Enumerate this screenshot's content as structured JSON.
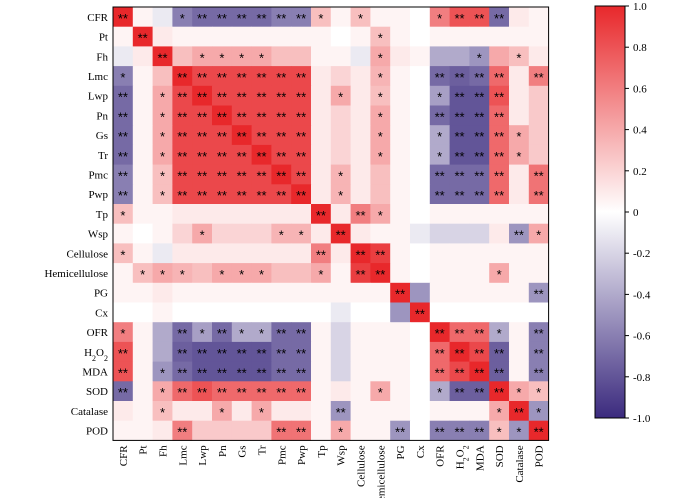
{
  "chart_data": {
    "type": "heatmap",
    "title": "",
    "xlabel": "",
    "ylabel": "",
    "variables": [
      "CFR",
      "Pt",
      "Fh",
      "Lmc",
      "Lwp",
      "Pn",
      "Gs",
      "Tr",
      "Pmc",
      "Pwp",
      "Tp",
      "Wsp",
      "Cellulose",
      "Hemicellulose",
      "PG",
      "Cx",
      "OFR",
      "H2O2",
      "MDA",
      "SOD",
      "Catalase",
      "POD"
    ],
    "row_labels": [
      {
        "main": "CFR"
      },
      {
        "main": "Pt"
      },
      {
        "main": "Fh"
      },
      {
        "main": "Lmc"
      },
      {
        "main": "Lwp"
      },
      {
        "main": "Pn"
      },
      {
        "main": "Gs"
      },
      {
        "main": "Tr"
      },
      {
        "main": "Pmc"
      },
      {
        "main": "Pwp"
      },
      {
        "main": "Tp"
      },
      {
        "main": "Wsp"
      },
      {
        "main": "Cellulose"
      },
      {
        "main": "Hemicellulose"
      },
      {
        "main": "PG"
      },
      {
        "main": "Cx"
      },
      {
        "main": "OFR"
      },
      {
        "main": "H",
        "sub": "2",
        "main2": "O",
        "sub2": "2"
      },
      {
        "main": "MDA"
      },
      {
        "main": "SOD"
      },
      {
        "main": "Catalase"
      },
      {
        "main": "POD"
      }
    ],
    "color_scale": {
      "min": -1.0,
      "max": 1.0,
      "low_color": "#3b2a7e",
      "mid_color": "#ffffff",
      "high_color": "#e8282b"
    },
    "colorbar_ticks": [
      "1.0",
      "0.8",
      "0.6",
      "0.4",
      "0.2",
      "0",
      "-0.2",
      "-0.4",
      "-0.6",
      "-0.8",
      "-1.0"
    ],
    "colorbar_tick_values": [
      1.0,
      0.8,
      0.6,
      0.4,
      0.2,
      0,
      -0.2,
      -0.4,
      -0.6,
      -0.8,
      -1.0
    ],
    "values": [
      [
        1.0,
        0.05,
        -0.1,
        -0.6,
        -0.7,
        -0.7,
        -0.7,
        -0.7,
        -0.6,
        -0.6,
        0.3,
        0.05,
        0.3,
        0.05,
        0.05,
        0.0,
        0.6,
        0.8,
        0.8,
        -0.7,
        0.1,
        0.05
      ],
      [
        0.05,
        1.0,
        0.1,
        0.05,
        0.05,
        0.05,
        0.05,
        0.05,
        0.05,
        0.05,
        0.05,
        0.0,
        0.05,
        0.3,
        0.05,
        0.0,
        0.05,
        0.05,
        0.05,
        0.05,
        0.05,
        0.05
      ],
      [
        -0.1,
        0.1,
        1.0,
        0.3,
        0.4,
        0.4,
        0.4,
        0.4,
        0.3,
        0.3,
        0.05,
        0.05,
        -0.1,
        0.4,
        0.1,
        0.05,
        -0.4,
        -0.4,
        -0.5,
        0.4,
        0.3,
        0.1
      ],
      [
        -0.6,
        0.05,
        0.3,
        1.0,
        0.85,
        0.85,
        0.85,
        0.85,
        0.85,
        0.85,
        0.1,
        0.2,
        0.1,
        0.35,
        0.05,
        0.0,
        -0.7,
        -0.75,
        -0.7,
        0.7,
        0.1,
        0.6
      ],
      [
        -0.7,
        0.05,
        0.4,
        0.85,
        1.0,
        0.85,
        0.85,
        0.85,
        0.85,
        0.85,
        0.1,
        0.4,
        0.1,
        0.3,
        0.05,
        0.0,
        -0.45,
        -0.8,
        -0.8,
        0.8,
        0.1,
        0.25
      ],
      [
        -0.7,
        0.05,
        0.4,
        0.85,
        0.85,
        1.0,
        0.85,
        0.85,
        0.85,
        0.85,
        0.1,
        0.2,
        0.1,
        0.4,
        0.05,
        0.0,
        -0.7,
        -0.8,
        -0.8,
        0.7,
        0.1,
        0.25
      ],
      [
        -0.7,
        0.05,
        0.4,
        0.85,
        0.85,
        0.85,
        1.0,
        0.85,
        0.85,
        0.85,
        0.1,
        0.2,
        0.1,
        0.4,
        0.05,
        0.0,
        -0.4,
        -0.8,
        -0.8,
        0.7,
        0.4,
        0.25
      ],
      [
        -0.7,
        0.05,
        0.4,
        0.85,
        0.85,
        0.85,
        0.85,
        1.0,
        0.85,
        0.85,
        0.1,
        0.2,
        0.1,
        0.4,
        0.05,
        0.0,
        -0.4,
        -0.8,
        -0.8,
        0.7,
        0.4,
        0.25
      ],
      [
        -0.6,
        0.05,
        0.3,
        0.85,
        0.85,
        0.85,
        0.85,
        0.85,
        1.0,
        0.85,
        0.1,
        0.35,
        0.1,
        0.3,
        0.05,
        0.0,
        -0.7,
        -0.7,
        -0.7,
        0.7,
        0.1,
        0.65
      ],
      [
        -0.6,
        0.05,
        0.3,
        0.85,
        0.85,
        0.85,
        0.85,
        0.85,
        0.85,
        1.0,
        0.1,
        0.35,
        0.1,
        0.3,
        0.05,
        0.0,
        -0.7,
        -0.7,
        -0.7,
        0.7,
        0.1,
        0.65
      ],
      [
        0.3,
        0.05,
        0.05,
        0.1,
        0.1,
        0.1,
        0.1,
        0.1,
        0.1,
        0.1,
        1.0,
        0.1,
        0.6,
        0.4,
        0.05,
        0.0,
        0.05,
        0.05,
        0.05,
        0.05,
        0.05,
        0.05
      ],
      [
        0.05,
        0.0,
        0.05,
        0.2,
        0.4,
        0.2,
        0.2,
        0.2,
        0.35,
        0.35,
        0.1,
        1.0,
        0.1,
        0.05,
        0.05,
        -0.1,
        -0.2,
        -0.2,
        -0.2,
        0.1,
        -0.5,
        0.4
      ],
      [
        0.3,
        0.05,
        -0.1,
        0.1,
        0.1,
        0.1,
        0.1,
        0.1,
        0.1,
        0.1,
        0.6,
        0.1,
        1.0,
        0.9,
        0.05,
        0.0,
        0.05,
        0.05,
        0.05,
        0.05,
        0.05,
        0.05
      ],
      [
        0.05,
        0.3,
        0.4,
        0.35,
        0.3,
        0.4,
        0.4,
        0.4,
        0.3,
        0.3,
        0.4,
        0.05,
        0.9,
        1.0,
        0.05,
        0.0,
        0.05,
        0.05,
        0.05,
        0.4,
        0.05,
        0.05
      ],
      [
        0.05,
        0.05,
        0.1,
        0.05,
        0.05,
        0.05,
        0.05,
        0.05,
        0.05,
        0.05,
        0.05,
        0.05,
        0.05,
        0.05,
        1.0,
        -0.5,
        0.05,
        0.05,
        0.05,
        0.05,
        0.05,
        -0.5
      ],
      [
        0.0,
        0.0,
        0.05,
        0.0,
        0.0,
        0.0,
        0.0,
        0.0,
        0.0,
        0.0,
        0.0,
        -0.1,
        0.0,
        0.0,
        -0.5,
        1.0,
        0.0,
        0.0,
        0.0,
        0.0,
        0.0,
        0.0
      ],
      [
        0.6,
        0.05,
        -0.4,
        -0.7,
        -0.45,
        -0.7,
        -0.4,
        -0.4,
        -0.7,
        -0.7,
        0.05,
        -0.2,
        0.05,
        0.05,
        0.05,
        0.0,
        1.0,
        0.7,
        0.7,
        -0.4,
        0.05,
        -0.6
      ],
      [
        0.8,
        0.05,
        -0.4,
        -0.75,
        -0.8,
        -0.8,
        -0.8,
        -0.8,
        -0.7,
        -0.7,
        0.05,
        -0.2,
        0.05,
        0.05,
        0.05,
        0.0,
        0.7,
        1.0,
        0.85,
        -0.75,
        0.05,
        -0.6
      ],
      [
        0.8,
        0.05,
        -0.5,
        -0.7,
        -0.8,
        -0.8,
        -0.8,
        -0.8,
        -0.7,
        -0.7,
        0.05,
        -0.2,
        0.05,
        0.05,
        0.05,
        0.0,
        0.7,
        0.85,
        1.0,
        -0.75,
        0.05,
        -0.6
      ],
      [
        -0.7,
        0.05,
        0.4,
        0.7,
        0.8,
        0.7,
        0.7,
        0.7,
        0.7,
        0.7,
        0.05,
        0.1,
        0.05,
        0.4,
        0.05,
        0.0,
        -0.4,
        -0.75,
        -0.75,
        1.0,
        0.4,
        0.3
      ],
      [
        0.1,
        0.05,
        0.3,
        0.1,
        0.1,
        0.4,
        0.1,
        0.4,
        0.1,
        0.1,
        0.05,
        -0.5,
        0.05,
        0.05,
        0.05,
        0.0,
        0.05,
        0.05,
        0.05,
        0.4,
        1.0,
        -0.5
      ],
      [
        0.05,
        0.05,
        0.1,
        0.6,
        0.25,
        0.25,
        0.25,
        0.25,
        0.65,
        0.65,
        0.05,
        0.4,
        0.05,
        0.05,
        -0.5,
        0.0,
        -0.6,
        -0.6,
        -0.6,
        0.3,
        -0.5,
        1.0
      ]
    ],
    "significance": [
      [
        "**",
        "",
        "",
        "*",
        "**",
        "**",
        "**",
        "**",
        "**",
        "**",
        "*",
        "",
        "*",
        "",
        "",
        "",
        "*",
        "**",
        "**",
        "**",
        "",
        ""
      ],
      [
        "",
        "**",
        "",
        "",
        "",
        "",
        "",
        "",
        "",
        "",
        "",
        "",
        "",
        "*",
        "",
        "",
        "",
        "",
        "",
        "",
        "",
        ""
      ],
      [
        "",
        "",
        "**",
        "",
        "*",
        "*",
        "*",
        "*",
        "",
        "",
        "",
        "",
        "",
        "*",
        "",
        "",
        "",
        "",
        "*",
        "",
        "*",
        ""
      ],
      [
        "*",
        "",
        "",
        "**",
        "**",
        "**",
        "**",
        "**",
        "**",
        "**",
        "",
        "",
        "",
        "*",
        "",
        "",
        "**",
        "**",
        "**",
        "**",
        "",
        "**"
      ],
      [
        "**",
        "",
        "*",
        "**",
        "**",
        "**",
        "**",
        "**",
        "**",
        "**",
        "",
        "*",
        "",
        "*",
        "",
        "",
        "*",
        "**",
        "**",
        "**",
        "",
        ""
      ],
      [
        "**",
        "",
        "*",
        "**",
        "**",
        "**",
        "**",
        "**",
        "**",
        "**",
        "",
        "",
        "",
        "*",
        "",
        "",
        "**",
        "**",
        "**",
        "**",
        "",
        ""
      ],
      [
        "**",
        "",
        "*",
        "**",
        "**",
        "**",
        "**",
        "**",
        "**",
        "**",
        "",
        "",
        "",
        "*",
        "",
        "",
        "*",
        "**",
        "**",
        "**",
        "*",
        ""
      ],
      [
        "**",
        "",
        "*",
        "**",
        "**",
        "**",
        "**",
        "**",
        "**",
        "**",
        "",
        "",
        "",
        "*",
        "",
        "",
        "*",
        "**",
        "**",
        "**",
        "*",
        ""
      ],
      [
        "**",
        "",
        "*",
        "**",
        "**",
        "**",
        "**",
        "**",
        "**",
        "**",
        "",
        "*",
        "",
        "",
        "",
        "",
        "**",
        "**",
        "**",
        "**",
        "",
        "**"
      ],
      [
        "**",
        "",
        "*",
        "**",
        "**",
        "**",
        "**",
        "**",
        "**",
        "**",
        "",
        "*",
        "",
        "",
        "",
        "",
        "**",
        "**",
        "**",
        "**",
        "",
        "**"
      ],
      [
        "*",
        "",
        "",
        "",
        "",
        "",
        "",
        "",
        "",
        "",
        "**",
        "",
        "**",
        "*",
        "",
        "",
        "",
        "",
        "",
        "",
        "",
        ""
      ],
      [
        "",
        "",
        "",
        "",
        "*",
        "",
        "",
        "",
        "*",
        "*",
        "",
        "**",
        "",
        "",
        "",
        "",
        "",
        "",
        "",
        "",
        "**",
        "*"
      ],
      [
        "*",
        "",
        "",
        "",
        "",
        "",
        "",
        "",
        "",
        "",
        "**",
        "",
        "**",
        "**",
        "",
        "",
        "",
        "",
        "",
        "",
        "",
        ""
      ],
      [
        "",
        "*",
        "*",
        "*",
        "",
        "*",
        "*",
        "*",
        "",
        "",
        "*",
        "",
        "**",
        "**",
        "",
        "",
        "",
        "",
        "",
        "*",
        "",
        ""
      ],
      [
        "",
        "",
        "",
        "",
        "",
        "",
        "",
        "",
        "",
        "",
        "",
        "",
        "",
        "",
        "**",
        "",
        "",
        "",
        "",
        "",
        "",
        "**"
      ],
      [
        "",
        "",
        "",
        "",
        "",
        "",
        "",
        "",
        "",
        "",
        "",
        "",
        "",
        "",
        "",
        "**",
        "",
        "",
        "",
        "",
        "",
        ""
      ],
      [
        "*",
        "",
        "",
        "**",
        "*",
        "**",
        "*",
        "*",
        "**",
        "**",
        "",
        "",
        "",
        "",
        "",
        "",
        "**",
        "**",
        "**",
        "*",
        "",
        "**"
      ],
      [
        "**",
        "",
        "",
        "**",
        "**",
        "**",
        "**",
        "**",
        "**",
        "**",
        "",
        "",
        "",
        "",
        "",
        "",
        "**",
        "**",
        "**",
        "**",
        "",
        "**"
      ],
      [
        "**",
        "",
        "*",
        "**",
        "**",
        "**",
        "**",
        "**",
        "**",
        "**",
        "",
        "",
        "",
        "",
        "",
        "",
        "**",
        "**",
        "**",
        "**",
        "",
        "**"
      ],
      [
        "**",
        "",
        "*",
        "**",
        "**",
        "**",
        "**",
        "**",
        "**",
        "**",
        "",
        "",
        "",
        "*",
        "",
        "",
        "*",
        "**",
        "**",
        "**",
        "*",
        "*"
      ],
      [
        "",
        "",
        "*",
        "",
        "",
        "*",
        "",
        "*",
        "",
        "",
        "",
        "**",
        "",
        "",
        "",
        "",
        "",
        "",
        "",
        "*",
        "**",
        "*"
      ],
      [
        "",
        "",
        "",
        "**",
        "",
        "",
        "",
        "",
        "**",
        "**",
        "",
        "*",
        "",
        "",
        "**",
        "",
        "**",
        "**",
        "**",
        "*",
        "*",
        "**"
      ]
    ]
  }
}
